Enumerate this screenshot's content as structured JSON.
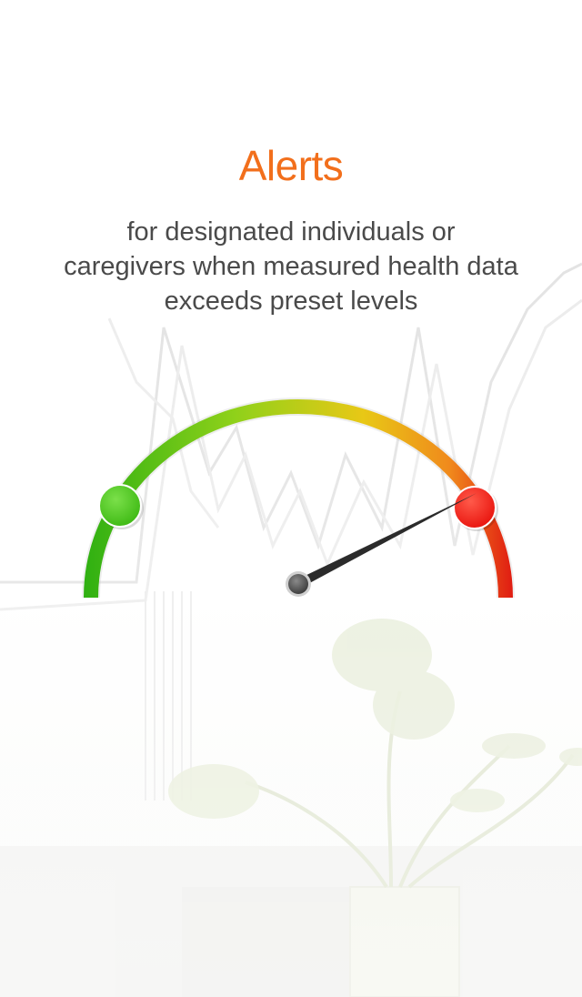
{
  "screen": {
    "title": "Alerts",
    "subtitle_lines": [
      "for designated individuals or",
      "caregivers when measured health data",
      "exceeds preset levels"
    ]
  },
  "gauge": {
    "level_percent": 85,
    "low_marker_color": "#3cb812",
    "high_marker_color": "#e8120c",
    "gradient_colors": [
      "#2fb012",
      "#8fd11a",
      "#e8c816",
      "#f08a1c",
      "#e01a12"
    ],
    "needle_color": "#2b2b2b",
    "markers": [
      "green-marker",
      "red-marker"
    ]
  },
  "colors": {
    "accent": "#f26f1c",
    "text": "#4a4a4a"
  }
}
